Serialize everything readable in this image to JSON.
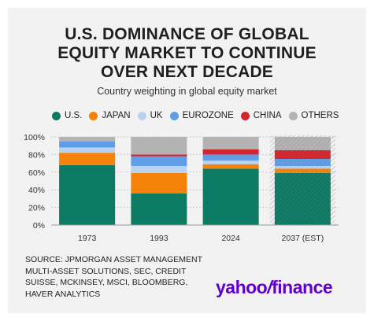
{
  "title_lines": [
    "U.S. DOMINANCE OF GLOBAL",
    "EQUITY MARKET TO CONTINUE",
    "OVER NEXT DECADE"
  ],
  "subtitle": "Country weighting in global equity market",
  "source_text": "SOURCE: JPMORGAN ASSET MANAGEMENT MULTI-ASSET SOLUTIONS, SEC, CREDIT SUISSE, MCKINSEY, MSCI, BLOOMBERG, HAVER ANALYTICS",
  "logo": {
    "part1": "yahoo",
    "slash": "/",
    "part2": "finance"
  },
  "colors": {
    "U.S.": "#0d7a63",
    "JAPAN": "#f5820a",
    "UK": "#b8d3f1",
    "EUROZONE": "#5f9ee6",
    "CHINA": "#d3252d",
    "OTHERS": "#b3b3b3"
  },
  "chart_data": {
    "type": "bar",
    "stacked": true,
    "title": "U.S. DOMINANCE OF GLOBAL EQUITY MARKET TO CONTINUE OVER NEXT DECADE",
    "subtitle": "Country weighting in global equity market",
    "xlabel": "",
    "ylabel": "",
    "ylim": [
      0,
      100
    ],
    "yticks": [
      "0%",
      "20%",
      "40%",
      "60%",
      "80%",
      "100%"
    ],
    "grid": true,
    "legend_position": "top",
    "categories": [
      "1973",
      "1993",
      "2024",
      "2037 (EST)"
    ],
    "estimated_category": "2037 (EST)",
    "series": [
      {
        "name": "U.S.",
        "values": [
          68,
          36,
          64,
          59
        ]
      },
      {
        "name": "JAPAN",
        "values": [
          14,
          23,
          5,
          5
        ]
      },
      {
        "name": "UK",
        "values": [
          6,
          8,
          4,
          3
        ]
      },
      {
        "name": "EUROZONE",
        "values": [
          7,
          11,
          7,
          8
        ]
      },
      {
        "name": "CHINA",
        "values": [
          0,
          2,
          6,
          10
        ]
      },
      {
        "name": "OTHERS",
        "values": [
          5,
          20,
          14,
          15
        ]
      }
    ]
  }
}
